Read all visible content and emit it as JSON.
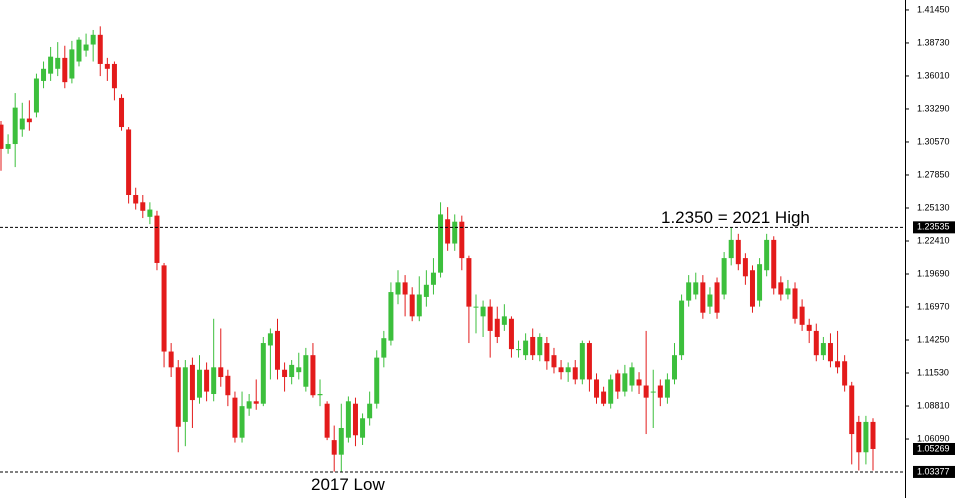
{
  "chart_data": {
    "type": "candlestick",
    "open": [
      1.32,
      1.3,
      1.304,
      1.316,
      1.325,
      1.33,
      1.356,
      1.362,
      1.366,
      1.375,
      1.358,
      1.372,
      1.381,
      1.386,
      1.394,
      1.37,
      1.37,
      1.342,
      1.316,
      1.262,
      1.256,
      1.244,
      1.245,
      1.204,
      1.133,
      1.12,
      1.075,
      1.122,
      1.095,
      1.118,
      1.098,
      1.12,
      1.113,
      1.095,
      1.062,
      1.086,
      1.092,
      1.09,
      1.138,
      1.15,
      1.118,
      1.112,
      1.116,
      1.104,
      1.13,
      1.097,
      1.09,
      1.06,
      1.048,
      1.062,
      1.09,
      1.062,
      1.078,
      1.09,
      1.128,
      1.142,
      1.18,
      1.19,
      1.18,
      1.162,
      1.178,
      1.188,
      1.198,
      1.242,
      1.222,
      1.24,
      1.21,
      1.17,
      1.162,
      1.17,
      1.16,
      1.155,
      1.16,
      1.135,
      1.13,
      1.145,
      1.13,
      1.14,
      1.13,
      1.12,
      1.116,
      1.12,
      1.11,
      1.14,
      1.11,
      1.1,
      1.09,
      1.115,
      1.1,
      1.105,
      1.11,
      1.105,
      1.1,
      1.105,
      1.095,
      1.11,
      1.13,
      1.175,
      1.18,
      1.19,
      1.17,
      1.19,
      1.18,
      1.21,
      1.225,
      1.21,
      1.2,
      1.175,
      1.2,
      1.225,
      1.19,
      1.18,
      1.185,
      1.17,
      1.155,
      1.15,
      1.13,
      1.14,
      1.125,
      1.125,
      1.105,
      1.075,
      1.05,
      1.075
    ],
    "high": [
      1.323,
      1.312,
      1.346,
      1.338,
      1.34,
      1.362,
      1.372,
      1.384,
      1.388,
      1.385,
      1.389,
      1.392,
      1.395,
      1.398,
      1.401,
      1.375,
      1.372,
      1.345,
      1.318,
      1.268,
      1.262,
      1.256,
      1.249,
      1.206,
      1.14,
      1.126,
      1.126,
      1.128,
      1.13,
      1.124,
      1.16,
      1.152,
      1.118,
      1.1,
      1.1,
      1.098,
      1.11,
      1.145,
      1.152,
      1.16,
      1.124,
      1.126,
      1.132,
      1.136,
      1.14,
      1.11,
      1.092,
      1.072,
      1.09,
      1.096,
      1.095,
      1.082,
      1.1,
      1.134,
      1.15,
      1.19,
      1.2,
      1.196,
      1.186,
      1.195,
      1.2,
      1.21,
      1.256,
      1.252,
      1.246,
      1.245,
      1.212,
      1.18,
      1.175,
      1.176,
      1.17,
      1.172,
      1.162,
      1.142,
      1.148,
      1.152,
      1.148,
      1.145,
      1.136,
      1.126,
      1.124,
      1.126,
      1.142,
      1.142,
      1.115,
      1.104,
      1.114,
      1.118,
      1.122,
      1.124,
      1.116,
      1.15,
      1.118,
      1.11,
      1.115,
      1.14,
      1.18,
      1.196,
      1.198,
      1.196,
      1.186,
      1.194,
      1.215,
      1.235,
      1.23,
      1.214,
      1.204,
      1.21,
      1.23,
      1.228,
      1.195,
      1.192,
      1.19,
      1.176,
      1.16,
      1.156,
      1.145,
      1.148,
      1.15,
      1.13,
      1.108,
      1.08,
      1.08,
      1.078
    ],
    "low": [
      1.282,
      1.296,
      1.285,
      1.31,
      1.315,
      1.326,
      1.35,
      1.356,
      1.36,
      1.35,
      1.354,
      1.368,
      1.376,
      1.372,
      1.36,
      1.356,
      1.34,
      1.315,
      1.255,
      1.25,
      1.243,
      1.238,
      1.2,
      1.12,
      1.112,
      1.05,
      1.055,
      1.07,
      1.09,
      1.092,
      1.092,
      1.104,
      1.088,
      1.058,
      1.058,
      1.08,
      1.085,
      1.088,
      1.11,
      1.11,
      1.1,
      1.106,
      1.11,
      1.1,
      1.095,
      1.088,
      1.06,
      1.034,
      1.034,
      1.058,
      1.055,
      1.056,
      1.072,
      1.086,
      1.12,
      1.138,
      1.172,
      1.162,
      1.158,
      1.158,
      1.17,
      1.18,
      1.194,
      1.216,
      1.216,
      1.2,
      1.14,
      1.148,
      1.145,
      1.128,
      1.14,
      1.15,
      1.128,
      1.128,
      1.126,
      1.126,
      1.125,
      1.118,
      1.115,
      1.11,
      1.108,
      1.106,
      1.106,
      1.1,
      1.09,
      1.088,
      1.086,
      1.094,
      1.096,
      1.1,
      1.098,
      1.065,
      1.07,
      1.088,
      1.09,
      1.106,
      1.126,
      1.17,
      1.176,
      1.16,
      1.164,
      1.16,
      1.176,
      1.204,
      1.2,
      1.188,
      1.165,
      1.17,
      1.195,
      1.18,
      1.175,
      1.176,
      1.156,
      1.15,
      1.14,
      1.125,
      1.126,
      1.12,
      1.115,
      1.1,
      1.04,
      1.035,
      1.04,
      1.035
    ],
    "close": [
      1.3,
      1.304,
      1.334,
      1.325,
      1.322,
      1.358,
      1.366,
      1.376,
      1.375,
      1.355,
      1.382,
      1.39,
      1.386,
      1.394,
      1.37,
      1.366,
      1.35,
      1.318,
      1.262,
      1.255,
      1.249,
      1.25,
      1.206,
      1.133,
      1.12,
      1.071,
      1.12,
      1.093,
      1.118,
      1.1,
      1.12,
      1.112,
      1.097,
      1.062,
      1.088,
      1.092,
      1.09,
      1.14,
      1.148,
      1.118,
      1.112,
      1.122,
      1.12,
      1.13,
      1.097,
      1.098,
      1.062,
      1.048,
      1.07,
      1.092,
      1.064,
      1.078,
      1.09,
      1.128,
      1.144,
      1.182,
      1.19,
      1.18,
      1.162,
      1.18,
      1.188,
      1.198,
      1.246,
      1.222,
      1.24,
      1.21,
      1.17,
      1.17,
      1.17,
      1.15,
      1.145,
      1.162,
      1.135,
      1.135,
      1.142,
      1.13,
      1.145,
      1.125,
      1.12,
      1.116,
      1.12,
      1.11,
      1.14,
      1.11,
      1.095,
      1.09,
      1.11,
      1.1,
      1.115,
      1.12,
      1.105,
      1.095,
      1.1,
      1.095,
      1.11,
      1.13,
      1.175,
      1.19,
      1.19,
      1.165,
      1.18,
      1.165,
      1.21,
      1.225,
      1.205,
      1.195,
      1.17,
      1.205,
      1.225,
      1.185,
      1.18,
      1.185,
      1.16,
      1.155,
      1.15,
      1.13,
      1.14,
      1.125,
      1.12,
      1.105,
      1.065,
      1.05,
      1.075,
      1.0527
    ],
    "up_color": "#3cbf3c",
    "down_color": "#e31b1b",
    "ylim": [
      1.0123,
      1.4227
    ],
    "yticks": [
      {
        "value": 1.4145,
        "label": "1.41450"
      },
      {
        "value": 1.3873,
        "label": "1.38730"
      },
      {
        "value": 1.3601,
        "label": "1.36010"
      },
      {
        "value": 1.3329,
        "label": "1.33290"
      },
      {
        "value": 1.3057,
        "label": "1.30570"
      },
      {
        "value": 1.2785,
        "label": "1.27850"
      },
      {
        "value": 1.2513,
        "label": "1.25130"
      },
      {
        "value": 1.2241,
        "label": "1.22410"
      },
      {
        "value": 1.1969,
        "label": "1.19690"
      },
      {
        "value": 1.1697,
        "label": "1.16970"
      },
      {
        "value": 1.1425,
        "label": "1.14250"
      },
      {
        "value": 1.1153,
        "label": "1.11530"
      },
      {
        "value": 1.0881,
        "label": "1.08810"
      },
      {
        "value": 1.0609,
        "label": "1.06090"
      }
    ],
    "price_markers": [
      {
        "value": 1.23535,
        "label": "1.23535",
        "dashed_line": true
      },
      {
        "value": 1.05269,
        "label": "1.05269",
        "dashed_line": false
      },
      {
        "value": 1.03377,
        "label": "1.03377",
        "dashed_line": true
      }
    ],
    "annotations": [
      "1.2350 = 2021 High",
      "2017 Low"
    ]
  }
}
